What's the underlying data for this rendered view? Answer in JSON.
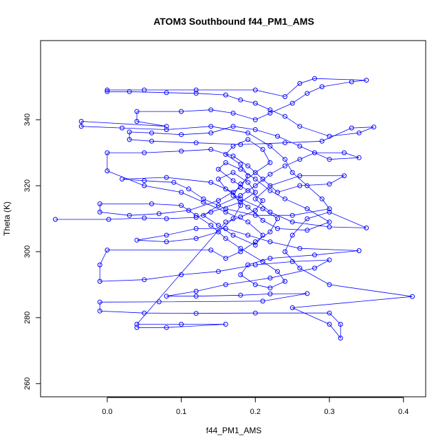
{
  "chart_data": {
    "type": "scatter",
    "title": "ATOM3 Southbound f44_PM1_AMS",
    "xlabel": "f44_PM1_AMS",
    "ylabel": "Theta (K)",
    "xlim": [
      -0.09,
      0.43
    ],
    "ylim": [
      256,
      364
    ],
    "x_ticks": [
      0.0,
      0.1,
      0.2,
      0.3,
      0.4
    ],
    "x_tick_labels": [
      "0.0",
      "0.1",
      "0.2",
      "0.3",
      "0.4"
    ],
    "y_ticks": [
      260,
      280,
      300,
      320,
      340
    ],
    "y_tick_labels": [
      "260",
      "280",
      "300",
      "320",
      "340"
    ],
    "grid": false,
    "connected": true,
    "marker": "open-circle",
    "series": [
      {
        "color": "#0000ff",
        "points": [
          [
            -0.07,
            309.8
          ],
          [
            0.002,
            309.8
          ],
          [
            0.05,
            310.2
          ],
          [
            0.08,
            310.0
          ],
          [
            0.12,
            310.4
          ],
          [
            0.14,
            312.0
          ],
          [
            0.18,
            315.0
          ],
          [
            0.2,
            318.0
          ],
          [
            0.19,
            321.0
          ],
          [
            0.17,
            324.0
          ],
          [
            0.15,
            322.0
          ],
          [
            0.16,
            319.0
          ],
          [
            0.18,
            316.0
          ],
          [
            0.21,
            313.0
          ],
          [
            0.23,
            310.0
          ],
          [
            0.22,
            306.0
          ],
          [
            0.2,
            303.0
          ],
          [
            0.18,
            300.0
          ],
          [
            0.16,
            298.0
          ],
          [
            0.14,
            300.5
          ],
          [
            0.0,
            300.5
          ],
          [
            -0.01,
            296.0
          ],
          [
            -0.01,
            291.0
          ],
          [
            0.05,
            291.5
          ],
          [
            0.1,
            293.0
          ],
          [
            0.15,
            294.0
          ],
          [
            0.2,
            296.0
          ],
          [
            0.25,
            297.0
          ],
          [
            0.3,
            297.5
          ],
          [
            0.28,
            295.0
          ],
          [
            0.22,
            292.0
          ],
          [
            0.16,
            290.0
          ],
          [
            0.12,
            288.0
          ],
          [
            0.08,
            286.5
          ],
          [
            0.12,
            286.5
          ],
          [
            0.18,
            286.8
          ],
          [
            0.22,
            287.2
          ],
          [
            0.27,
            287.3
          ],
          [
            0.21,
            285.0
          ],
          [
            0.07,
            284.8
          ],
          [
            -0.01,
            284.7
          ],
          [
            -0.01,
            282.0
          ],
          [
            0.05,
            281.4
          ],
          [
            0.12,
            281.3
          ],
          [
            0.2,
            281.4
          ],
          [
            0.3,
            281.4
          ],
          [
            0.315,
            278.0
          ],
          [
            0.315,
            273.8
          ],
          [
            0.3,
            278.0
          ],
          [
            0.25,
            283.0
          ],
          [
            0.412,
            286.4
          ],
          [
            0.3,
            290.0
          ],
          [
            0.26,
            295.0
          ],
          [
            0.24,
            300.0
          ],
          [
            0.25,
            305.0
          ],
          [
            0.27,
            310.0
          ],
          [
            0.3,
            312.0
          ],
          [
            0.35,
            307.2
          ],
          [
            0.3,
            307.5
          ],
          [
            0.25,
            309.0
          ],
          [
            0.22,
            312.0
          ],
          [
            0.2,
            316.0
          ],
          [
            0.22,
            320.0
          ],
          [
            0.26,
            323.0
          ],
          [
            0.32,
            323.0
          ],
          [
            0.3,
            320.5
          ],
          [
            0.26,
            320.0
          ],
          [
            0.23,
            318.0
          ],
          [
            0.21,
            322.0
          ],
          [
            0.19,
            326.0
          ],
          [
            0.17,
            329.0
          ],
          [
            0.14,
            331.0
          ],
          [
            0.1,
            330.5
          ],
          [
            0.05,
            330.0
          ],
          [
            0.0,
            330.0
          ],
          [
            0.0,
            324.5
          ],
          [
            0.05,
            320.0
          ],
          [
            0.1,
            318.0
          ],
          [
            0.13,
            315.0
          ],
          [
            0.16,
            312.0
          ],
          [
            0.19,
            309.0
          ],
          [
            0.21,
            305.0
          ],
          [
            0.2,
            302.0
          ],
          [
            0.17,
            305.0
          ],
          [
            0.15,
            308.0
          ],
          [
            0.13,
            311.0
          ],
          [
            0.15,
            314.0
          ],
          [
            0.18,
            317.0
          ],
          [
            0.2,
            320.0
          ],
          [
            0.22,
            323.5
          ],
          [
            0.24,
            326.0
          ],
          [
            0.26,
            328.0
          ],
          [
            0.28,
            330.0
          ],
          [
            0.32,
            330.0
          ],
          [
            0.34,
            328.5
          ],
          [
            0.3,
            328.0
          ],
          [
            0.26,
            332.0
          ],
          [
            0.23,
            335.0
          ],
          [
            0.2,
            337.0
          ],
          [
            0.17,
            338.0
          ],
          [
            0.14,
            336.0
          ],
          [
            0.1,
            335.5
          ],
          [
            0.06,
            336.0
          ],
          [
            0.03,
            336.3
          ],
          [
            0.03,
            334.0
          ],
          [
            0.06,
            333.5
          ],
          [
            0.12,
            333.0
          ],
          [
            0.18,
            332.5
          ],
          [
            0.24,
            333.0
          ],
          [
            0.29,
            333.5
          ],
          [
            0.33,
            337.5
          ],
          [
            0.36,
            337.8
          ],
          [
            0.34,
            336.0
          ],
          [
            0.3,
            335.0
          ],
          [
            0.26,
            338.0
          ],
          [
            0.24,
            341.0
          ],
          [
            0.22,
            343.0
          ],
          [
            0.2,
            345.0
          ],
          [
            0.18,
            346.0
          ],
          [
            0.16,
            347.5
          ],
          [
            0.12,
            348.0
          ],
          [
            0.08,
            348.2
          ],
          [
            0.03,
            348.5
          ],
          [
            0.0,
            348.5
          ],
          [
            0.0,
            349.0
          ],
          [
            0.05,
            349.0
          ],
          [
            0.12,
            349.0
          ],
          [
            0.2,
            349.0
          ],
          [
            0.24,
            347.0
          ],
          [
            0.26,
            351.0
          ],
          [
            0.28,
            352.5
          ],
          [
            0.35,
            352.0
          ],
          [
            0.33,
            351.5
          ],
          [
            0.29,
            350.0
          ],
          [
            0.27,
            348.0
          ],
          [
            0.25,
            345.0
          ],
          [
            0.22,
            342.0
          ],
          [
            0.2,
            340.0
          ],
          [
            0.17,
            342.0
          ],
          [
            0.14,
            343.0
          ],
          [
            0.1,
            342.5
          ],
          [
            0.04,
            342.5
          ],
          [
            0.04,
            339.5
          ],
          [
            0.08,
            338.0
          ],
          [
            -0.035,
            339.5
          ],
          [
            -0.035,
            338.0
          ],
          [
            0.02,
            337.5
          ],
          [
            0.08,
            337.0
          ],
          [
            0.14,
            338.0
          ],
          [
            0.19,
            336.0
          ],
          [
            0.22,
            332.0
          ],
          [
            0.24,
            328.0
          ],
          [
            0.25,
            324.0
          ],
          [
            0.27,
            320.0
          ],
          [
            0.29,
            316.0
          ],
          [
            0.3,
            313.0
          ],
          [
            0.25,
            311.0
          ],
          [
            0.2,
            311.0
          ],
          [
            0.16,
            313.0
          ],
          [
            0.13,
            316.0
          ],
          [
            0.11,
            319.0
          ],
          [
            0.09,
            321.0
          ],
          [
            0.05,
            321.5
          ],
          [
            0.02,
            322.0
          ],
          [
            0.08,
            322.5
          ],
          [
            0.14,
            321.0
          ],
          [
            0.17,
            318.0
          ],
          [
            0.18,
            314.0
          ],
          [
            0.17,
            310.0
          ],
          [
            0.15,
            306.0
          ],
          [
            0.12,
            304.0
          ],
          [
            0.08,
            303.0
          ],
          [
            0.04,
            303.5
          ],
          [
            0.08,
            305.0
          ],
          [
            0.12,
            307.0
          ],
          [
            0.16,
            307.0
          ],
          [
            0.19,
            305.0
          ],
          [
            0.22,
            303.0
          ],
          [
            0.26,
            301.0
          ],
          [
            0.34,
            300.3
          ],
          [
            0.28,
            299.0
          ],
          [
            0.22,
            298.0
          ],
          [
            0.19,
            296.0
          ],
          [
            0.18,
            293.0
          ],
          [
            0.2,
            290.0
          ],
          [
            0.22,
            289.0
          ],
          [
            0.24,
            291.0
          ],
          [
            0.23,
            294.0
          ],
          [
            0.21,
            297.0
          ],
          [
            0.18,
            301.0
          ],
          [
            0.16,
            304.0
          ],
          [
            0.14,
            308.0
          ],
          [
            0.12,
            311.0
          ],
          [
            0.1,
            314.0
          ],
          [
            0.06,
            314.5
          ],
          [
            -0.01,
            314.5
          ],
          [
            -0.01,
            312.0
          ],
          [
            0.03,
            311.0
          ],
          [
            0.07,
            311.5
          ],
          [
            0.11,
            312.5
          ],
          [
            0.15,
            315.5
          ],
          [
            0.18,
            319.5
          ],
          [
            0.19,
            323.0
          ],
          [
            0.18,
            326.5
          ],
          [
            0.16,
            329.5
          ],
          [
            0.17,
            332.0
          ],
          [
            0.19,
            334.0
          ],
          [
            0.21,
            331.0
          ],
          [
            0.22,
            327.0
          ],
          [
            0.2,
            324.0
          ],
          [
            0.18,
            320.5
          ],
          [
            0.17,
            317.0
          ],
          [
            0.19,
            313.5
          ],
          [
            0.21,
            309.5
          ],
          [
            0.23,
            307.0
          ],
          [
            0.27,
            306.5
          ],
          [
            0.3,
            309.0
          ],
          [
            0.27,
            313.0
          ],
          [
            0.24,
            316.0
          ],
          [
            0.22,
            318.5
          ],
          [
            0.2,
            322.0
          ],
          [
            0.18,
            325.0
          ],
          [
            0.16,
            327.0
          ],
          [
            0.15,
            325.0
          ],
          [
            0.17,
            321.5
          ],
          [
            0.19,
            318.5
          ],
          [
            0.21,
            315.5
          ],
          [
            0.2,
            312.5
          ],
          [
            0.18,
            310.5
          ],
          [
            0.16,
            309.0
          ],
          [
            0.04,
            278.0
          ],
          [
            0.1,
            278.0
          ],
          [
            0.16,
            278.0
          ],
          [
            0.08,
            277.0
          ],
          [
            0.04,
            277.0
          ]
        ]
      }
    ]
  }
}
